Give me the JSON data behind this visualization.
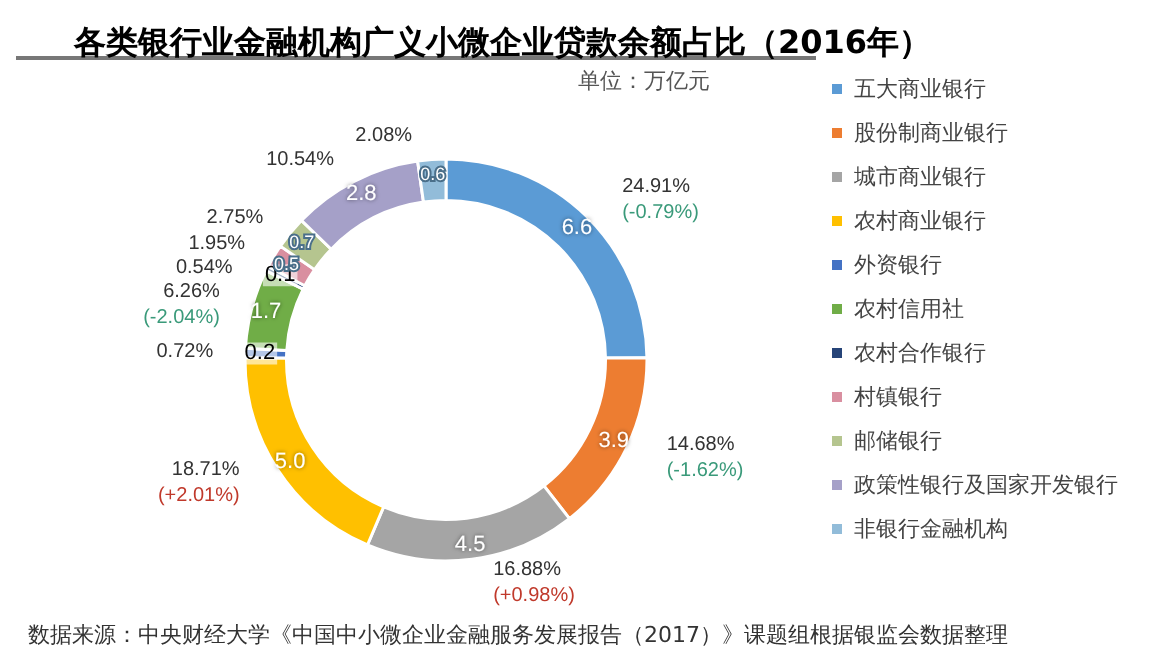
{
  "chart_data": {
    "type": "donut",
    "title": "各类银行业金融机构广义小微企业贷款余额占比（2016年）",
    "subtitle": "单位：万亿元",
    "categories": [
      "五大商业银行",
      "股份制商业银行",
      "城市商业银行",
      "农村商业银行",
      "外资银行",
      "农村信用社",
      "农村合作银行",
      "村镇银行",
      "邮储银行",
      "政策性银行及国家开发银行",
      "非银行金融机构"
    ],
    "values": [
      6.6,
      3.9,
      4.5,
      5.0,
      0.2,
      1.7,
      0.1,
      0.5,
      0.7,
      2.8,
      0.6
    ],
    "colors": [
      "#5b9bd5",
      "#ed7d31",
      "#a5a5a5",
      "#ffc000",
      "#4472c4",
      "#70ad47",
      "#264478",
      "#d98fa0",
      "#b5c58f",
      "#a5a0c8",
      "#92bcd9"
    ],
    "value_labels": [
      "6.6",
      "3.9",
      "4.5",
      "5.0",
      "0.2",
      "1.7",
      "0.1",
      "0.5",
      "0.7",
      "2.8",
      "0.6"
    ],
    "legend": "right",
    "annotations": [
      {
        "text": "24.91%",
        "x": "五大商业银行"
      },
      {
        "text": "(-0.79%)",
        "x": "五大商业银行"
      },
      {
        "text": "14.68%",
        "x": "股份制商业银行"
      },
      {
        "text": "(-1.62%)",
        "x": "股份制商业银行"
      },
      {
        "text": "16.88%",
        "x": "城市商业银行"
      },
      {
        "text": "(+0.98%)",
        "x": "城市商业银行"
      },
      {
        "text": "18.71%",
        "x": "农村商业银行"
      },
      {
        "text": "(+2.01%)",
        "x": "农村商业银行"
      },
      {
        "text": "0.72%",
        "x": "外资银行"
      },
      {
        "text": "6.26%",
        "x": "农村信用社"
      },
      {
        "text": "(-2.04%)",
        "x": "农村信用社"
      },
      {
        "text": "0.54%",
        "x": "农村合作银行"
      },
      {
        "text": "1.95%",
        "x": "村镇银行"
      },
      {
        "text": "2.75%",
        "x": "邮储银行"
      },
      {
        "text": "10.54%",
        "x": "政策性银行及国家开发银行"
      },
      {
        "text": "2.08%",
        "x": "非银行金融机构"
      },
      "数据来源：中央财经大学《中国中小微企业金融服务发展报告（2017）》课题组根据银监会数据整理"
    ]
  }
}
